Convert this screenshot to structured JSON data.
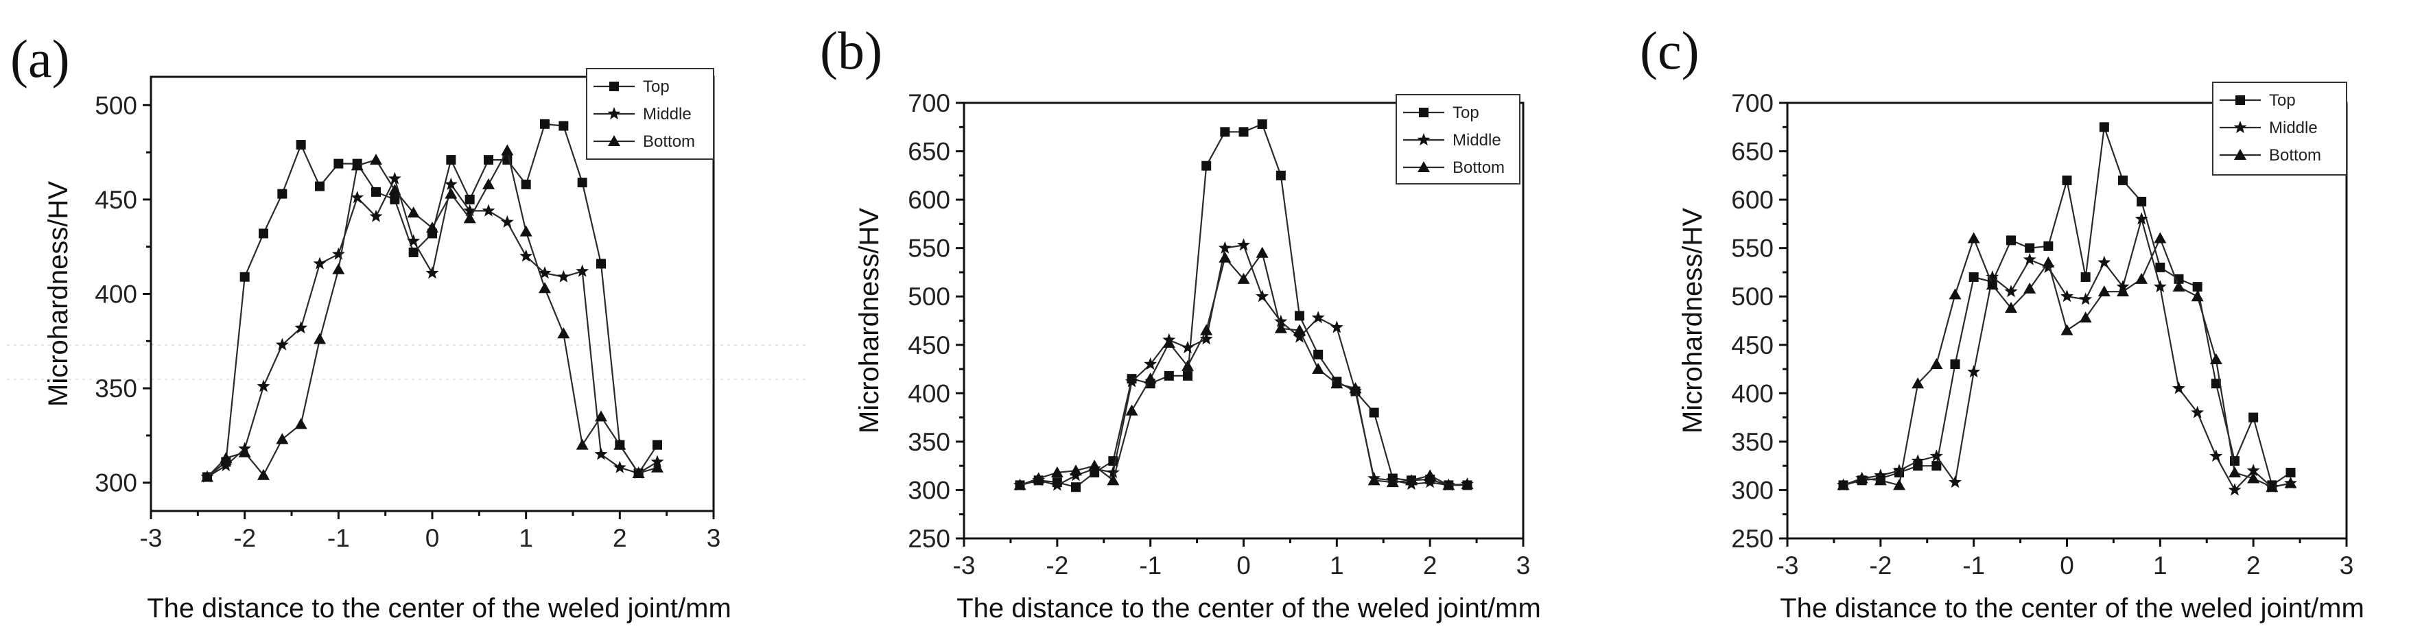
{
  "chart_data": [
    {
      "type": "line",
      "panel_label": "(a)",
      "xlabel": "The distance to the center of the weled joint/mm",
      "ylabel": "Microhardness/HV",
      "xlim": [
        -3,
        3
      ],
      "ylim": [
        285,
        515
      ],
      "xticks": [
        -3,
        -2,
        -1,
        0,
        1,
        2,
        3
      ],
      "yticks": [
        300,
        350,
        400,
        450,
        500
      ],
      "legend_position": "top-right",
      "series": [
        {
          "name": "Top",
          "marker": "square",
          "x": [
            -2.4,
            -2.2,
            -2.0,
            -1.8,
            -1.6,
            -1.4,
            -1.2,
            -1.0,
            -0.8,
            -0.6,
            -0.4,
            -0.2,
            0.0,
            0.2,
            0.4,
            0.6,
            0.8,
            1.0,
            1.2,
            1.4,
            1.6,
            1.8,
            2.0,
            2.2,
            2.4
          ],
          "y": [
            303,
            311,
            409,
            432,
            453,
            479,
            457,
            469,
            469,
            454,
            450,
            422,
            432,
            471,
            450,
            471,
            471,
            458,
            490,
            489,
            459,
            416,
            320,
            305,
            320
          ]
        },
        {
          "name": "Middle",
          "marker": "star",
          "x": [
            -2.4,
            -2.2,
            -2.0,
            -1.8,
            -1.6,
            -1.4,
            -1.2,
            -1.0,
            -0.8,
            -0.6,
            -0.4,
            -0.2,
            0.0,
            0.2,
            0.4,
            0.6,
            0.8,
            1.0,
            1.2,
            1.4,
            1.6,
            1.8,
            2.0,
            2.2,
            2.4
          ],
          "y": [
            303,
            309,
            318,
            351,
            373,
            382,
            416,
            421,
            451,
            441,
            461,
            428,
            411,
            458,
            444,
            444,
            438,
            420,
            411,
            409,
            412,
            315,
            308,
            305,
            311
          ]
        },
        {
          "name": "Bottom",
          "marker": "triangle",
          "x": [
            -2.4,
            -2.2,
            -2.0,
            -1.8,
            -1.6,
            -1.4,
            -1.2,
            -1.0,
            -0.8,
            -0.6,
            -0.4,
            -0.2,
            0.0,
            0.2,
            0.4,
            0.6,
            0.8,
            1.0,
            1.2,
            1.4,
            1.6,
            1.8,
            2.0,
            2.2,
            2.4
          ],
          "y": [
            303,
            313,
            316,
            304,
            323,
            331,
            376,
            413,
            468,
            471,
            455,
            443,
            435,
            453,
            440,
            458,
            476,
            433,
            403,
            379,
            320,
            335,
            320,
            305,
            308
          ]
        }
      ]
    },
    {
      "type": "line",
      "panel_label": "(b)",
      "xlabel": "The distance to the center of the weled joint/mm",
      "ylabel": "Microhardness/HV",
      "xlim": [
        -3,
        3
      ],
      "ylim": [
        250,
        700
      ],
      "xticks": [
        -3,
        -2,
        -1,
        0,
        1,
        2,
        3
      ],
      "yticks": [
        250,
        300,
        350,
        400,
        450,
        500,
        550,
        600,
        650,
        700
      ],
      "legend_position": "top-right",
      "series": [
        {
          "name": "Top",
          "marker": "square",
          "x": [
            -2.4,
            -2.2,
            -2.0,
            -1.8,
            -1.6,
            -1.4,
            -1.2,
            -1.0,
            -0.8,
            -0.6,
            -0.4,
            -0.2,
            0.0,
            0.2,
            0.4,
            0.6,
            0.8,
            1.0,
            1.2,
            1.4,
            1.6,
            1.8,
            2.0,
            2.2,
            2.4
          ],
          "y": [
            305,
            310,
            308,
            303,
            318,
            330,
            415,
            410,
            418,
            418,
            635,
            670,
            670,
            678,
            625,
            480,
            440,
            412,
            402,
            380,
            312,
            310,
            311,
            305,
            305
          ]
        },
        {
          "name": "Middle",
          "marker": "star",
          "x": [
            -2.4,
            -2.2,
            -2.0,
            -1.8,
            -1.6,
            -1.4,
            -1.2,
            -1.0,
            -0.8,
            -0.6,
            -0.4,
            -0.2,
            0.0,
            0.2,
            0.4,
            0.6,
            0.8,
            1.0,
            1.2,
            1.4,
            1.6,
            1.8,
            2.0,
            2.2,
            2.4
          ],
          "y": [
            305,
            310,
            305,
            315,
            322,
            318,
            412,
            430,
            455,
            447,
            456,
            550,
            553,
            500,
            474,
            458,
            478,
            468,
            402,
            312,
            310,
            306,
            308,
            305,
            306
          ]
        },
        {
          "name": "Bottom",
          "marker": "triangle",
          "x": [
            -2.4,
            -2.2,
            -2.0,
            -1.8,
            -1.6,
            -1.4,
            -1.2,
            -1.0,
            -0.8,
            -0.6,
            -0.4,
            -0.2,
            0.0,
            0.2,
            0.4,
            0.6,
            0.8,
            1.0,
            1.2,
            1.4,
            1.6,
            1.8,
            2.0,
            2.2,
            2.4
          ],
          "y": [
            305,
            312,
            318,
            320,
            325,
            310,
            382,
            415,
            452,
            428,
            465,
            540,
            518,
            545,
            467,
            465,
            425,
            410,
            405,
            310,
            308,
            310,
            315,
            305,
            306
          ]
        }
      ]
    },
    {
      "type": "line",
      "panel_label": "(c)",
      "xlabel": "The distance to the center of the weled joint/mm",
      "ylabel": "Microhardness/HV",
      "xlim": [
        -3,
        3
      ],
      "ylim": [
        250,
        700
      ],
      "xticks": [
        -3,
        -2,
        -1,
        0,
        1,
        2,
        3
      ],
      "yticks": [
        250,
        300,
        350,
        400,
        450,
        500,
        550,
        600,
        650,
        700
      ],
      "legend_position": "top-right",
      "series": [
        {
          "name": "Top",
          "marker": "square",
          "x": [
            -2.4,
            -2.2,
            -2.0,
            -1.8,
            -1.6,
            -1.4,
            -1.2,
            -1.0,
            -0.8,
            -0.6,
            -0.4,
            -0.2,
            0.0,
            0.2,
            0.4,
            0.6,
            0.8,
            1.0,
            1.2,
            1.4,
            1.6,
            1.8,
            2.0,
            2.2,
            2.4
          ],
          "y": [
            305,
            310,
            312,
            318,
            325,
            325,
            430,
            520,
            515,
            558,
            550,
            552,
            620,
            520,
            675,
            620,
            598,
            530,
            518,
            510,
            410,
            330,
            375,
            305,
            318
          ]
        },
        {
          "name": "Middle",
          "marker": "star",
          "x": [
            -2.4,
            -2.2,
            -2.0,
            -1.8,
            -1.6,
            -1.4,
            -1.2,
            -1.0,
            -0.8,
            -0.6,
            -0.4,
            -0.2,
            0.0,
            0.2,
            0.4,
            0.6,
            0.8,
            1.0,
            1.2,
            1.4,
            1.6,
            1.8,
            2.0,
            2.2,
            2.4
          ],
          "y": [
            305,
            312,
            315,
            320,
            330,
            335,
            308,
            422,
            520,
            505,
            538,
            530,
            500,
            497,
            535,
            510,
            580,
            510,
            405,
            380,
            335,
            300,
            320,
            303,
            307
          ]
        },
        {
          "name": "Bottom",
          "marker": "triangle",
          "x": [
            -2.4,
            -2.2,
            -2.0,
            -1.8,
            -1.6,
            -1.4,
            -1.2,
            -1.0,
            -0.8,
            -0.6,
            -0.4,
            -0.2,
            0.0,
            0.2,
            0.4,
            0.6,
            0.8,
            1.0,
            1.2,
            1.4,
            1.6,
            1.8,
            2.0,
            2.2,
            2.4
          ],
          "y": [
            305,
            312,
            310,
            305,
            410,
            430,
            502,
            560,
            512,
            488,
            508,
            535,
            465,
            478,
            505,
            505,
            518,
            560,
            510,
            500,
            435,
            318,
            312,
            303,
            307
          ]
        }
      ]
    }
  ]
}
